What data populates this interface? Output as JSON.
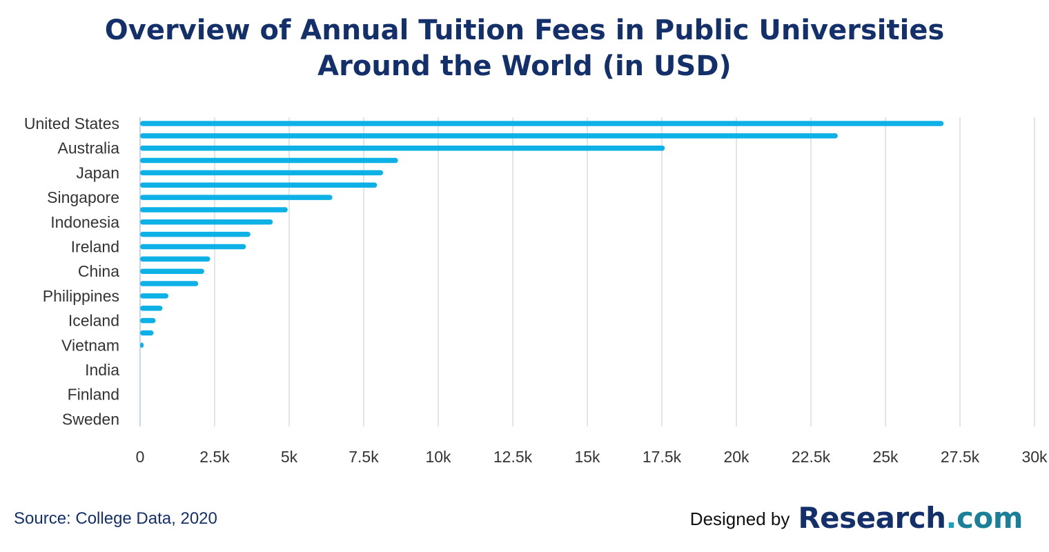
{
  "title_line1": "Overview of Annual Tuition Fees in Public Universities",
  "title_line2": "Around the World (in USD)",
  "source": "Source: College Data, 2020",
  "credit": {
    "prefix": "Designed by",
    "brand_main": "Research",
    "brand_dot": ".",
    "brand_tld": "com"
  },
  "colors": {
    "bar": "#0db1e6",
    "grid": "#e2e4e8",
    "title": "#14306b",
    "axis_text": "#333333"
  },
  "chart_data": {
    "type": "bar",
    "orientation": "horizontal",
    "title": "Overview of Annual Tuition Fees in Public Universities Around the World (in USD)",
    "xlabel": "",
    "ylabel": "",
    "xlim": [
      0,
      30000
    ],
    "grid": true,
    "x_ticks": [
      0,
      2500,
      5000,
      7500,
      10000,
      12500,
      15000,
      17500,
      20000,
      22500,
      25000,
      27500,
      30000
    ],
    "x_tick_labels": [
      "0",
      "2.5k",
      "5k",
      "7.5k",
      "10k",
      "12.5k",
      "15k",
      "17.5k",
      "20k",
      "22.5k",
      "25k",
      "27.5k",
      "30k"
    ],
    "categories": [
      "United States",
      "",
      "Australia",
      "",
      "Japan",
      "",
      "Singapore",
      "",
      "Indonesia",
      "",
      "Ireland",
      "",
      "China",
      "",
      "Philippines",
      "",
      "Iceland",
      "",
      "Vietnam",
      "",
      "India",
      "",
      "Finland",
      "",
      "Sweden"
    ],
    "values": [
      26950,
      23400,
      17600,
      8650,
      8150,
      7950,
      6450,
      4950,
      4450,
      3700,
      3550,
      2350,
      2150,
      1950,
      950,
      750,
      520,
      450,
      120,
      0,
      0,
      0,
      0,
      0,
      0
    ]
  }
}
